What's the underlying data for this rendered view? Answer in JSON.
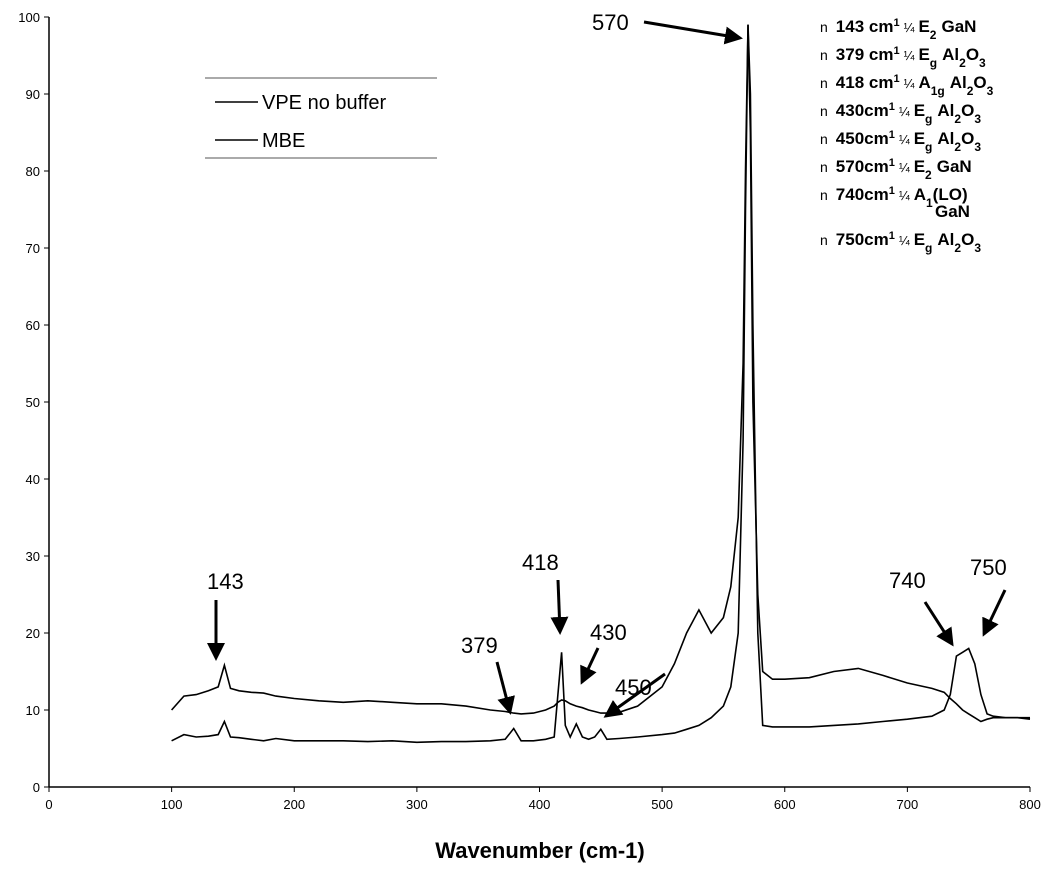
{
  "chart_data": {
    "type": "line",
    "xlabel": "Wavenumber (cm-1)",
    "xlim": [
      0,
      800
    ],
    "xticks": [
      0,
      100,
      200,
      300,
      400,
      500,
      600,
      700,
      800
    ],
    "ylim": [
      0,
      100
    ],
    "yticks": [
      0,
      10,
      20,
      30,
      40,
      50,
      60,
      70,
      80,
      90,
      100
    ],
    "grid": false,
    "x": [
      100,
      110,
      120,
      130,
      138,
      143,
      148,
      155,
      165,
      175,
      185,
      200,
      220,
      240,
      260,
      280,
      300,
      320,
      340,
      360,
      372,
      379,
      385,
      395,
      405,
      412,
      415,
      418,
      421,
      425,
      430,
      435,
      440,
      445,
      450,
      455,
      465,
      480,
      500,
      510,
      520,
      530,
      540,
      550,
      556,
      562,
      566,
      568,
      570,
      572,
      574,
      578,
      582,
      590,
      600,
      620,
      640,
      660,
      680,
      700,
      720,
      730,
      735,
      740,
      745,
      750,
      755,
      760,
      765,
      770,
      780,
      790,
      800
    ],
    "series": [
      {
        "name": "VPE no buffer",
        "color": "#000000",
        "values": [
          10,
          11.8,
          12,
          12.5,
          13,
          15.8,
          12.8,
          12.5,
          12.3,
          12.2,
          11.8,
          11.5,
          11.2,
          11,
          11.2,
          11,
          10.8,
          10.8,
          10.5,
          10,
          9.8,
          9.6,
          9.5,
          9.6,
          10,
          10.5,
          11,
          11.3,
          11.2,
          10.8,
          10.5,
          10.3,
          10,
          9.8,
          9.6,
          9.6,
          9.7,
          10.5,
          13,
          16,
          20,
          23,
          20,
          22,
          26,
          35,
          55,
          80,
          99,
          85,
          50,
          25,
          15,
          14,
          14,
          14.2,
          15,
          15.4,
          14.5,
          13.5,
          12.8,
          12.3,
          11.5,
          10.8,
          10,
          9.5,
          9,
          8.5,
          8.8,
          9,
          9,
          9,
          9
        ]
      },
      {
        "name": "MBE",
        "color": "#000000",
        "values": [
          6,
          6.8,
          6.5,
          6.6,
          6.8,
          8.5,
          6.5,
          6.4,
          6.2,
          6,
          6.3,
          6,
          6,
          6,
          5.9,
          6,
          5.8,
          5.9,
          5.9,
          6,
          6.2,
          7.6,
          6,
          6,
          6.2,
          6.5,
          12,
          17.5,
          8,
          6.5,
          8.2,
          6.5,
          6.2,
          6.5,
          7.5,
          6.2,
          6.3,
          6.5,
          6.8,
          7,
          7.5,
          8,
          9,
          10.5,
          13,
          20,
          45,
          75,
          99,
          90,
          60,
          20,
          8,
          7.8,
          7.8,
          7.8,
          8,
          8.2,
          8.5,
          8.8,
          9.2,
          10,
          12,
          17,
          17.5,
          18,
          16,
          12,
          9.5,
          9.2,
          9,
          9,
          8.8
        ]
      }
    ],
    "annotations": [
      "570",
      "143",
      "379",
      "418",
      "430",
      "450",
      "740",
      "750"
    ],
    "peak_list": [
      {
        "marker": "n",
        "wavenumber": "143 cm",
        "exponent": "1",
        "symbol": "¼",
        "mode": [
          "E",
          "2"
        ],
        "material": [
          "GaN"
        ]
      },
      {
        "marker": "n",
        "wavenumber": "379 cm",
        "exponent": "1",
        "symbol": "¼",
        "mode": [
          "E",
          "g"
        ],
        "material": [
          "Al",
          "2",
          "O",
          "3"
        ]
      },
      {
        "marker": "n",
        "wavenumber": "418 cm",
        "exponent": "1",
        "symbol": "¼",
        "mode": [
          "A",
          "1g"
        ],
        "material": [
          "Al",
          "2",
          "O",
          "3"
        ]
      },
      {
        "marker": "n",
        "wavenumber": "430cm",
        "exponent": "1",
        "symbol": "¼",
        "mode": [
          "E",
          "g"
        ],
        "material": [
          "Al",
          "2",
          "O",
          "3"
        ]
      },
      {
        "marker": "n",
        "wavenumber": "450cm",
        "exponent": "1",
        "symbol": "¼",
        "mode": [
          "E",
          "g"
        ],
        "material": [
          "Al",
          "2",
          "O",
          "3"
        ]
      },
      {
        "marker": "n",
        "wavenumber": "570cm",
        "exponent": "1",
        "symbol": "¼",
        "mode": [
          "E",
          "2"
        ],
        "material": [
          "GaN"
        ]
      },
      {
        "marker": "n",
        "wavenumber": "740cm",
        "exponent": "1",
        "symbol": "¼",
        "mode": [
          "A",
          "1",
          "(LO)"
        ],
        "material": [
          "GaN"
        ]
      },
      {
        "marker": "n",
        "wavenumber": "750cm",
        "exponent": "1",
        "symbol": "¼",
        "mode": [
          "E",
          "g"
        ],
        "material": [
          "Al",
          "2",
          "O",
          "3"
        ]
      }
    ]
  }
}
